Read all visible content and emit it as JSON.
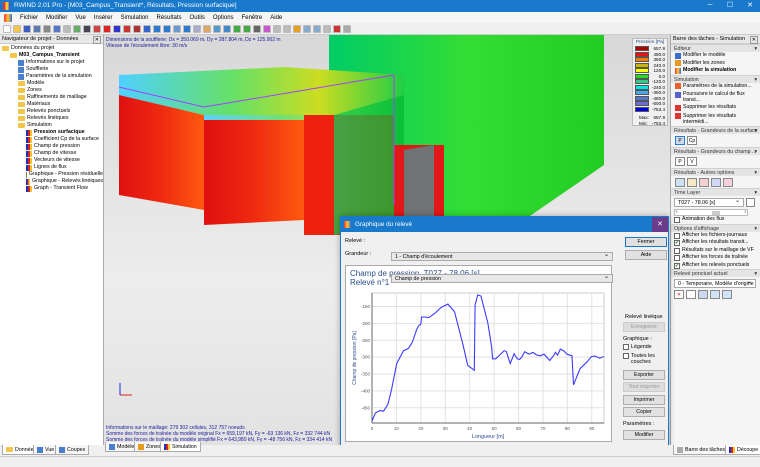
{
  "window": {
    "title": "RWIND 2.01 Pro - [M03_Campus_Transient*, Résultats, Pression surfacique]",
    "minimize": "─",
    "maximize": "☐",
    "close": "✕"
  },
  "menu": [
    "Fichier",
    "Modifier",
    "Vue",
    "Insérer",
    "Simulation",
    "Résultats",
    "Outils",
    "Options",
    "Fenêtre",
    "Aide"
  ],
  "navigator": {
    "title": "Navigateur de projet - Données",
    "items": [
      {
        "label": "Données du projet",
        "level": 0,
        "icon": "folder-icon"
      },
      {
        "label": "M03_Campus_Transient",
        "level": 1,
        "icon": "folder-icon",
        "bold": true,
        "expander": "−"
      },
      {
        "label": "Informations sur le projet",
        "level": 2,
        "icon": "info-icon"
      },
      {
        "label": "Soufflerie",
        "level": 2,
        "icon": "wind-tunnel-icon"
      },
      {
        "label": "Paramètres de la simulation",
        "level": 2,
        "icon": "simulation-params-icon"
      },
      {
        "label": "Modèle",
        "level": 2,
        "icon": "folder-icon",
        "expander": "+"
      },
      {
        "label": "Zones",
        "level": 2,
        "icon": "folder-icon"
      },
      {
        "label": "Raffinements de maillage",
        "level": 2,
        "icon": "folder-icon"
      },
      {
        "label": "Matériaux",
        "level": 2,
        "icon": "folder-icon"
      },
      {
        "label": "Relevés ponctuels",
        "level": 2,
        "icon": "folder-icon",
        "expander": "+"
      },
      {
        "label": "Relevés linéiques",
        "level": 2,
        "icon": "folder-icon",
        "expander": "+"
      },
      {
        "label": "Simulation",
        "level": 2,
        "icon": "folder-icon",
        "expander": "−"
      },
      {
        "label": "Pression surfacique",
        "level": 3,
        "icon": "result-icon",
        "bold": true
      },
      {
        "label": "Coefficient Cp de la surface",
        "level": 3,
        "icon": "result-icon"
      },
      {
        "label": "Champ de pression",
        "level": 3,
        "icon": "result-icon"
      },
      {
        "label": "Champ de vitesse",
        "level": 3,
        "icon": "result-icon"
      },
      {
        "label": "Vecteurs de vitesse",
        "level": 3,
        "icon": "result-icon"
      },
      {
        "label": "Lignes de flux",
        "level": 3,
        "icon": "result-icon"
      },
      {
        "label": "Graphique - Pression résiduelle",
        "level": 3,
        "icon": "result-icon"
      },
      {
        "label": "Graphique - Relevés linéiques",
        "level": 3,
        "icon": "result-icon"
      },
      {
        "label": "Graph - Transient Flow",
        "level": 3,
        "icon": "result-icon"
      }
    ]
  },
  "viewport": {
    "info_top": [
      "Dimensions de la soufflerie: Dx = 350.069 m, Dy = 287.804 m, Dz = 125.902 m",
      "Vitesse de l'écoulement libre: 30 m/s"
    ],
    "info_bottom": [
      "Informations sur le maillage: 279 302 cellules, 312 757 noeuds",
      "Somme des forces de traînée du modèle original Fx = 659,197 kN, Fy = -63 136 kN, Fz = 332 744 kN",
      "Somme des forces de traînée du modèle simplifié Fx = 643,980 kN, Fy = -48 756 kN, Fz = 334 414 kN"
    ],
    "tabs": [
      "Modèle",
      "Zones",
      "Simulation"
    ],
    "active_tab": "Simulation"
  },
  "legend": {
    "title": "Pression [Pa]",
    "entries": [
      {
        "value": "657.9",
        "color": "#b00000"
      },
      {
        "value": "480.0",
        "color": "#ee1111"
      },
      {
        "value": "360.0",
        "color": "#ff7a00"
      },
      {
        "value": "240.0",
        "color": "#c8b400"
      },
      {
        "value": "120.0",
        "color": "#ffff00"
      },
      {
        "value": "0.0",
        "color": "#22dd22"
      },
      {
        "value": "-120.0",
        "color": "#33cc88"
      },
      {
        "value": "-240.0",
        "color": "#00e5e5"
      },
      {
        "value": "-360.0",
        "color": "#44aaee"
      },
      {
        "value": "-480.0",
        "color": "#5577cc"
      },
      {
        "value": "-600.0",
        "color": "#6a6ad8"
      },
      {
        "value": "-753.4",
        "color": "#0000dd"
      }
    ],
    "max_label": "Max:",
    "max": "657.9",
    "min_label": "Min:",
    "min": "-753.4"
  },
  "taskpane": {
    "title": "Barre des tâches - Simulation",
    "editor": {
      "title": "Éditeur",
      "items": [
        "Modifier le modèle",
        "Modifier les zones",
        "Modifier la simulation"
      ]
    },
    "simulation": {
      "title": "Simulation",
      "items": [
        "Paramètres de la simulation...",
        "Poursuivre le calcul de flux transi...",
        "Supprimer les résultats",
        "Supprimer les résultats intermédi..."
      ]
    },
    "surface": {
      "title": "Résultats - Grandeurs de la surface",
      "buttons": [
        "P",
        "Cp"
      ]
    },
    "field": {
      "title": "Résultats - Grandeurs du champ ...",
      "buttons": [
        "P",
        "V"
      ]
    },
    "other": {
      "title": "Résultats - Autres options"
    },
    "timelayer": {
      "title": "Time Layer",
      "value": "T027 - 78.06 [s]",
      "slider_fraction": 0.55,
      "animation": "Animation des flux"
    },
    "display": {
      "title": "Options d'affichage",
      "items": [
        {
          "label": "Afficher les fichiers-journaux",
          "checked": false
        },
        {
          "label": "Afficher les résultats transit...",
          "checked": true
        },
        {
          "label": "Résultats sur le maillage de VF",
          "checked": false
        },
        {
          "label": "Afficher les forces de traînée",
          "checked": false
        },
        {
          "label": "Afficher les relevés ponctuels",
          "checked": true
        }
      ]
    },
    "probe": {
      "title": "Relevé ponctuel actuel",
      "value": "0 - Temporaire, Modèle d'origine"
    }
  },
  "dialog": {
    "title": "Graphique du relevé",
    "releve_label": "Relevé :",
    "releve_value": "1 - Champ d'écoulement",
    "grandeur_label": "Grandeur :",
    "grandeur_value": "Champ de pression",
    "close": "Fermer",
    "help": "Aide",
    "line_probe_label": "Relevé linéique",
    "save": "Enregistrer",
    "graph_label": "Graphique :",
    "legend_cb": "Légende",
    "all_layers_cb": "Toutes les couches",
    "export": "Exporter",
    "export_all": "Tout exporter",
    "print": "Imprimer",
    "copy": "Copier",
    "params_label": "Paramètres :",
    "modify": "Modifier"
  },
  "chart_data": {
    "type": "line",
    "title": "Champ de pression, T027 - 78.06 [s]",
    "subtitle": "Relevé n°1",
    "xlabel": "Longueur [m]",
    "ylabel": "Champ de pression [Pa]",
    "xlim": [
      0,
      95
    ],
    "ylim": [
      -495,
      -110
    ],
    "xticks": [
      0,
      10,
      20,
      30,
      40,
      50,
      60,
      70,
      80,
      90
    ],
    "yticks": [
      -450,
      -400,
      -350,
      -300,
      -250,
      -200,
      -150
    ],
    "grid": true,
    "color": "#3b3bff",
    "x": [
      0,
      1.4,
      3.4,
      4.7,
      6.5,
      8.1,
      10.1,
      12.9,
      14.9,
      16.5,
      18.3,
      19.2,
      20,
      20.3,
      21.6,
      23.3,
      25.7,
      28.4,
      31.1,
      33.8,
      37.2,
      39.2,
      41.9,
      42.2,
      43.3,
      44.6,
      47.4,
      49,
      49.4,
      50.7,
      52.1,
      54.1,
      55,
      56.6,
      58.2,
      59.5,
      60.5,
      61.6,
      62.5,
      64.3,
      66,
      67.4,
      69,
      70.4,
      72.8,
      74.4,
      75.1,
      76,
      77.1,
      78.5,
      79.8,
      81.9,
      82.5,
      85.2,
      87.9,
      89.9,
      91.3,
      93.3,
      95
    ],
    "y": [
      -489,
      -465,
      -458,
      -460,
      -440,
      -392,
      -319,
      -281,
      -274,
      -256,
      -218,
      -206,
      -203,
      -181,
      -181,
      -183,
      -170,
      -152,
      -143,
      -165,
      -261,
      -324,
      -339,
      -145,
      -116,
      -119,
      -198,
      -271,
      -305,
      -305,
      -295,
      -281,
      -283,
      -319,
      -290,
      -305,
      -307,
      -297,
      -284,
      -291,
      -286,
      -294,
      -296,
      -291,
      -310,
      -295,
      -286,
      -294,
      -276,
      -281,
      -291,
      -296,
      -382,
      -334,
      -315,
      -298,
      -297,
      -303,
      -298
    ]
  },
  "bottom_tabs_left": [
    "Données",
    "Vue",
    "Coupes"
  ],
  "bottom_tabs_right": [
    "Barre des tâches",
    "Découpe"
  ]
}
